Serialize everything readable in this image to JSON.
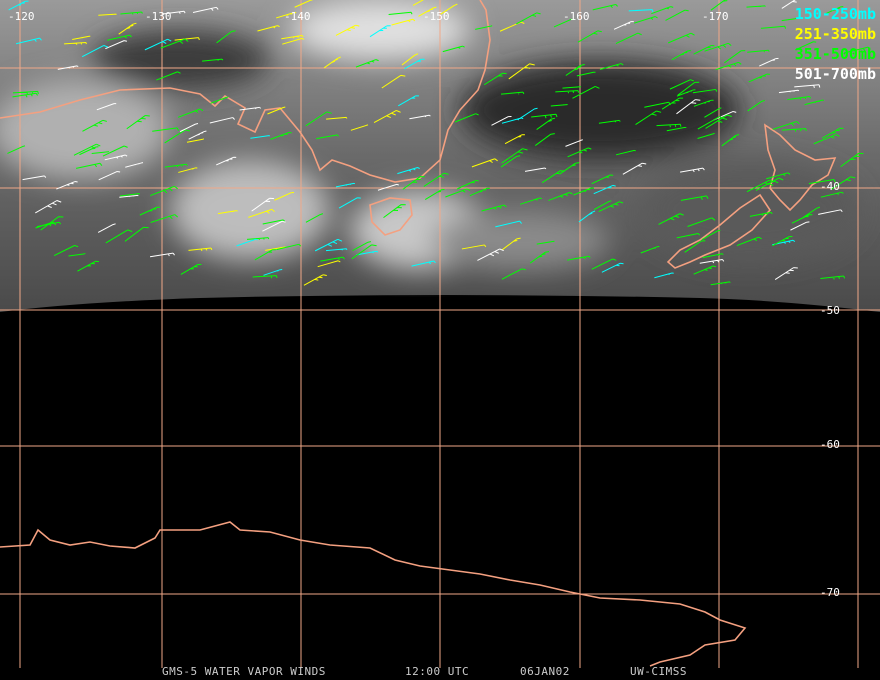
{
  "map": {
    "longitude_labels": [
      "-120",
      "-130",
      "-140",
      "-150",
      "-160",
      "-170"
    ],
    "latitude_labels": [
      "-40",
      "-50",
      "-60",
      "-70"
    ],
    "legend": [
      {
        "label": "150-250mb",
        "color": "#00ffff"
      },
      {
        "label": "251-350mb",
        "color": "#ffff00"
      },
      {
        "label": "351-500mb",
        "color": "#00ff00"
      },
      {
        "label": "501-700mb",
        "color": "#ffffff"
      }
    ],
    "footer": [
      "GMS-5 WATER VAPOR WINDS",
      "12:00 UTC",
      "06JAN02",
      "UW-CIMSS"
    ]
  }
}
